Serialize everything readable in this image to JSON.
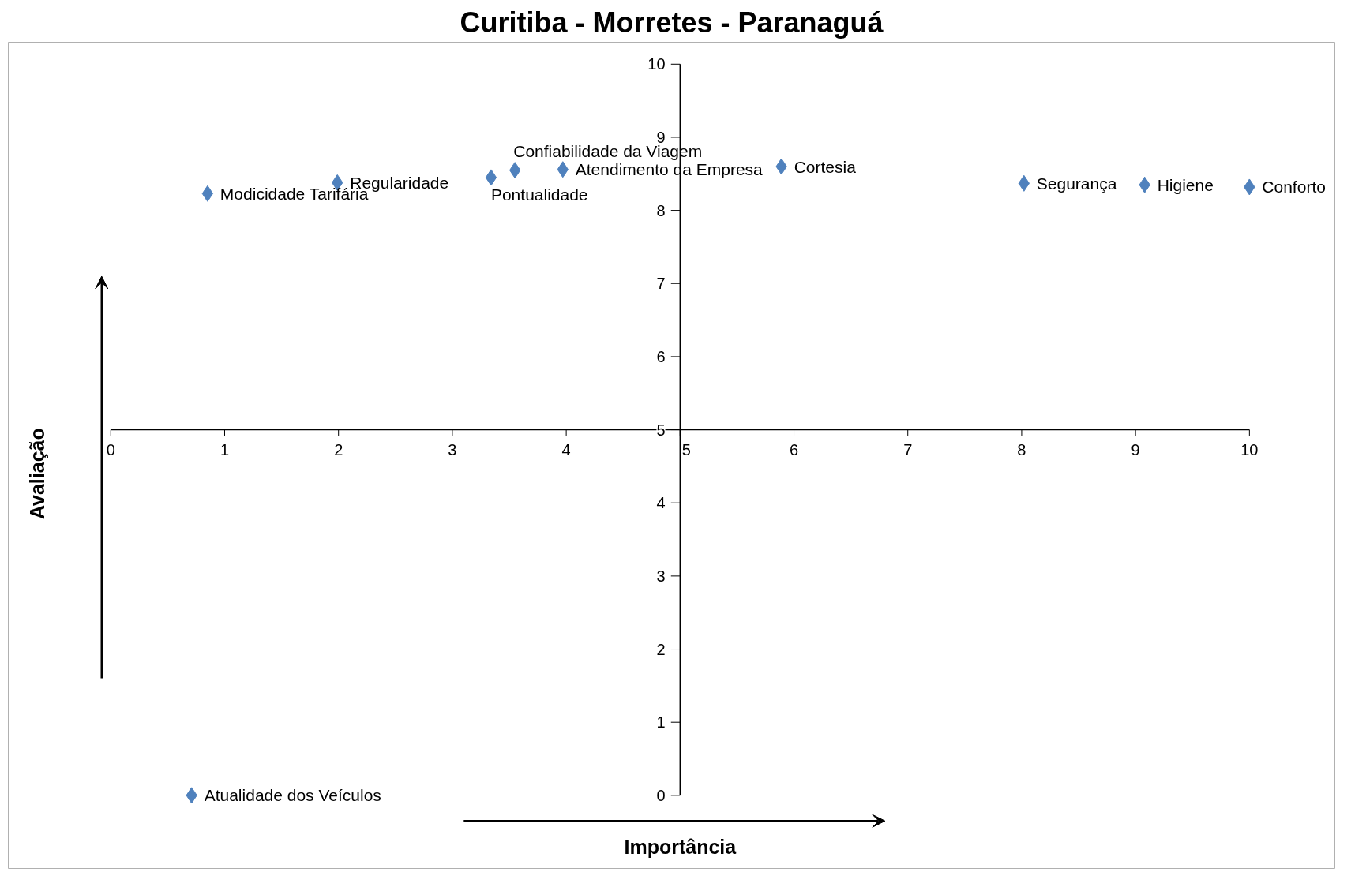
{
  "chart_data": {
    "type": "scatter",
    "title": "Curitiba - Morretes - Paranaguá",
    "xlabel": "Importância",
    "ylabel": "Avaliação",
    "x": [
      0.85,
      1.99,
      3.34,
      3.55,
      3.97,
      5.89,
      8.02,
      9.08,
      10.0,
      0.71
    ],
    "series": [
      {
        "color": "#4f81bd",
        "values": [
          8.23,
          8.38,
          8.45,
          8.55,
          8.56,
          8.6,
          8.37,
          8.35,
          8.32,
          0.0
        ]
      }
    ],
    "marker": "diamond",
    "grid": false,
    "xlim": [
      0,
      10
    ],
    "ylim": [
      0,
      10
    ],
    "xticks": [
      0,
      1,
      2,
      3,
      4,
      5,
      6,
      7,
      8,
      9,
      10
    ],
    "yticks": [
      0,
      1,
      2,
      3,
      4,
      5,
      6,
      7,
      8,
      9,
      10
    ],
    "annotations": [
      {
        "text": "Modicidade Tarifária",
        "x": 0.85,
        "y": 8.23
      },
      {
        "text": "Regularidade",
        "x": 1.99,
        "y": 8.38
      },
      {
        "text": "Pontualidade",
        "x": 3.34,
        "y": 8.45
      },
      {
        "text": "Confiabilidade da Viagem",
        "x": 3.55,
        "y": 8.55
      },
      {
        "text": "Atendimento da Empresa",
        "x": 3.97,
        "y": 8.56
      },
      {
        "text": "Cortesia",
        "x": 5.89,
        "y": 8.6
      },
      {
        "text": "Segurança",
        "x": 8.02,
        "y": 8.37
      },
      {
        "text": "Higiene",
        "x": 9.08,
        "y": 8.35
      },
      {
        "text": "Conforto",
        "x": 10.0,
        "y": 8.32
      },
      {
        "text": "Atualidade dos Veículos",
        "x": 0.71,
        "y": 0.0
      }
    ]
  }
}
